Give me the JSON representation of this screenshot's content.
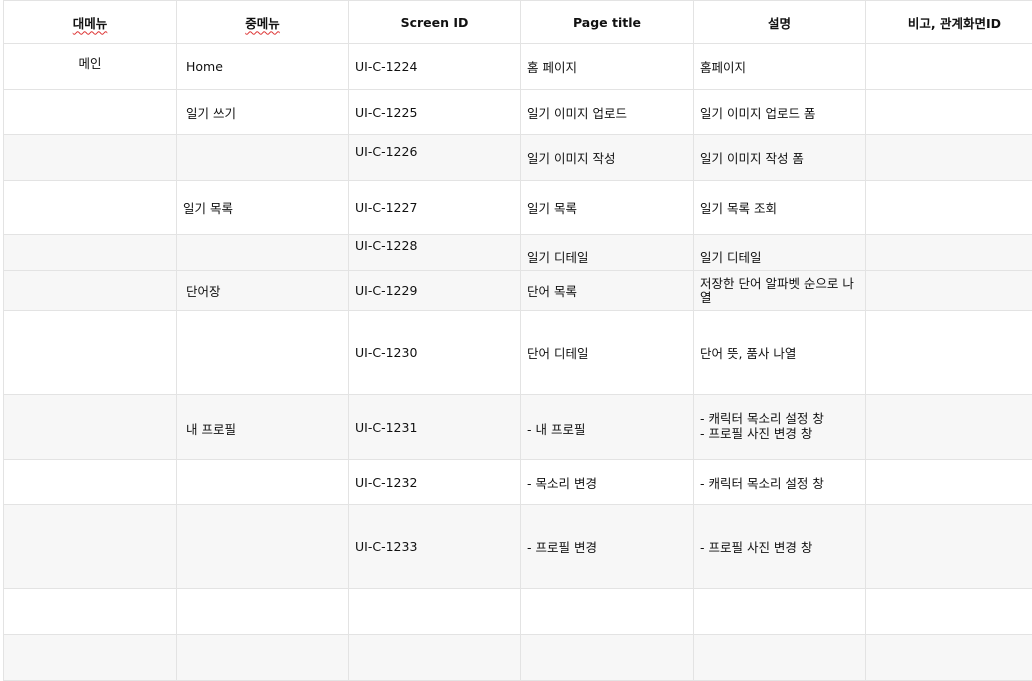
{
  "headers": [
    "대메뉴",
    "중메뉴",
    "Screen ID",
    "Page title",
    "설명",
    "비고, 관계화면ID"
  ],
  "rows": [
    {
      "main": "메인",
      "sub": "Home",
      "id": "UI-C-1224",
      "title": "홈 페이지",
      "desc": "홈페이지",
      "note": ""
    },
    {
      "main": "",
      "sub": "일기 쓰기",
      "id": "UI-C-1225",
      "title": "일기 이미지 업로드",
      "desc": "일기 이미지 업로드 폼",
      "note": ""
    },
    {
      "main": "",
      "sub": "",
      "id": "UI-C-1226",
      "title": "일기 이미지 작성",
      "desc": "일기 이미지 작성 폼",
      "note": ""
    },
    {
      "main": "",
      "sub": "일기 목록",
      "id": "UI-C-1227",
      "title": "일기 목록",
      "desc": "일기 목록 조회",
      "note": ""
    },
    {
      "main": "",
      "sub": "",
      "id": "UI-C-1228",
      "title": "일기 디테일",
      "desc": "일기 디테일",
      "note": ""
    },
    {
      "main": "",
      "sub": "단어장",
      "id": "UI-C-1229",
      "title": "단어 목록",
      "desc": "저장한 단어 알파벳 순으로 나열",
      "note": ""
    },
    {
      "main": "",
      "sub": "",
      "id": "UI-C-1230",
      "title": "단어 디테일",
      "desc": "단어 뜻, 품사 나열",
      "note": ""
    },
    {
      "main": "",
      "sub": "내 프로필",
      "id": "UI-C-1231",
      "title": "- 내 프로필",
      "desc_list": [
        "-    캐릭터 목소리 설정 창",
        "-    프로필 사진 변경 창"
      ],
      "note": ""
    },
    {
      "main": "",
      "sub": "",
      "id": "UI-C-1232",
      "title": "- 목소리 변경",
      "desc": "- 캐릭터 목소리 설정 창",
      "note": ""
    },
    {
      "main": "",
      "sub": "",
      "id": "UI-C-1233",
      "title": "- 프로필 변경",
      "desc": "- 프로필 사진 변경 창",
      "note": ""
    }
  ]
}
